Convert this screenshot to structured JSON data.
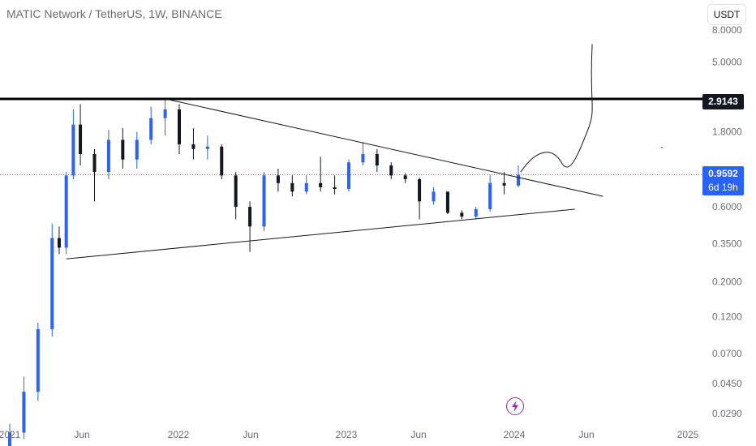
{
  "header": {
    "symbol_title": "MATIC Network / TetherUS, 1W, BINANCE",
    "currency_button": "USDT"
  },
  "badges": {
    "resistance_label": "2.9143",
    "last_price": "0.9592",
    "countdown": "6d 19h"
  },
  "icons": {
    "bottom_center": "lightning-bolt-icon",
    "bolt_color": "#9c27b0"
  },
  "colors": {
    "up": "#2962ff",
    "down": "#131722",
    "last_price_line": "#f23645",
    "background": "#ffffff"
  },
  "chart_data": {
    "type": "candlestick",
    "title": "MATIC Network / TetherUS, 1W, BINANCE",
    "y_scale": "log",
    "y_ticks": [
      "8.0000",
      "5.0000",
      "1.8000",
      "0.6000",
      "0.3500",
      "0.2000",
      "0.1200",
      "0.0700",
      "0.0450",
      "0.0290"
    ],
    "x_ticks": [
      "2021",
      "Jun",
      "2022",
      "Jun",
      "2023",
      "Jun",
      "2024",
      "Jun",
      "2025"
    ],
    "x_range": [
      "2021-01",
      "2025-01"
    ],
    "last_price": 0.9592,
    "horizontal_resistance": 2.9143,
    "candles": [
      {
        "date": "2021-01",
        "open": 0.018,
        "high": 0.025,
        "low": 0.017,
        "close": 0.022
      },
      {
        "date": "2021-02",
        "open": 0.022,
        "high": 0.05,
        "low": 0.02,
        "close": 0.04
      },
      {
        "date": "2021-03",
        "open": 0.04,
        "high": 0.11,
        "low": 0.035,
        "close": 0.1
      },
      {
        "date": "2021-04",
        "open": 0.1,
        "high": 0.47,
        "low": 0.09,
        "close": 0.38
      },
      {
        "date": "2021-04b",
        "open": 0.38,
        "high": 0.45,
        "low": 0.3,
        "close": 0.33
      },
      {
        "date": "2021-05a",
        "open": 0.33,
        "high": 1.0,
        "low": 0.3,
        "close": 0.95
      },
      {
        "date": "2021-05b",
        "open": 0.95,
        "high": 2.5,
        "low": 0.9,
        "close": 2.0
      },
      {
        "date": "2021-06",
        "open": 2.0,
        "high": 2.7,
        "low": 1.1,
        "close": 1.3
      },
      {
        "date": "2021-07",
        "open": 1.3,
        "high": 1.4,
        "low": 0.65,
        "close": 1.0
      },
      {
        "date": "2021-08",
        "open": 1.0,
        "high": 1.85,
        "low": 0.9,
        "close": 1.6
      },
      {
        "date": "2021-09",
        "open": 1.6,
        "high": 1.9,
        "low": 1.05,
        "close": 1.2
      },
      {
        "date": "2021-10",
        "open": 1.2,
        "high": 1.8,
        "low": 1.05,
        "close": 1.6
      },
      {
        "date": "2021-11",
        "open": 1.6,
        "high": 2.6,
        "low": 1.5,
        "close": 2.2
      },
      {
        "date": "2021-12",
        "open": 2.2,
        "high": 2.92,
        "low": 1.7,
        "close": 2.5
      },
      {
        "date": "2022-01",
        "open": 2.5,
        "high": 2.7,
        "low": 1.3,
        "close": 1.5
      },
      {
        "date": "2022-02",
        "open": 1.5,
        "high": 1.9,
        "low": 1.2,
        "close": 1.4
      },
      {
        "date": "2022-03",
        "open": 1.4,
        "high": 1.7,
        "low": 1.2,
        "close": 1.45
      },
      {
        "date": "2022-04",
        "open": 1.45,
        "high": 1.5,
        "low": 0.9,
        "close": 0.95
      },
      {
        "date": "2022-05",
        "open": 0.95,
        "high": 1.0,
        "low": 0.5,
        "close": 0.6
      },
      {
        "date": "2022-06",
        "open": 0.6,
        "high": 0.65,
        "low": 0.31,
        "close": 0.45
      },
      {
        "date": "2022-07",
        "open": 0.45,
        "high": 1.0,
        "low": 0.42,
        "close": 0.95
      },
      {
        "date": "2022-08",
        "open": 0.95,
        "high": 1.05,
        "low": 0.75,
        "close": 0.85
      },
      {
        "date": "2022-09",
        "open": 0.85,
        "high": 0.95,
        "low": 0.7,
        "close": 0.75
      },
      {
        "date": "2022-10",
        "open": 0.75,
        "high": 0.95,
        "low": 0.72,
        "close": 0.85
      },
      {
        "date": "2022-11",
        "open": 0.85,
        "high": 1.25,
        "low": 0.75,
        "close": 0.8
      },
      {
        "date": "2022-12",
        "open": 0.8,
        "high": 0.95,
        "low": 0.72,
        "close": 0.78
      },
      {
        "date": "2023-01",
        "open": 0.78,
        "high": 1.2,
        "low": 0.75,
        "close": 1.15
      },
      {
        "date": "2023-02",
        "open": 1.15,
        "high": 1.55,
        "low": 1.1,
        "close": 1.3
      },
      {
        "date": "2023-03",
        "open": 1.3,
        "high": 1.4,
        "low": 1.0,
        "close": 1.1
      },
      {
        "date": "2023-04",
        "open": 1.1,
        "high": 1.15,
        "low": 0.9,
        "close": 0.95
      },
      {
        "date": "2023-05",
        "open": 0.95,
        "high": 0.98,
        "low": 0.85,
        "close": 0.9
      },
      {
        "date": "2023-06",
        "open": 0.9,
        "high": 0.92,
        "low": 0.5,
        "close": 0.65
      },
      {
        "date": "2023-07",
        "open": 0.65,
        "high": 0.8,
        "low": 0.62,
        "close": 0.75
      },
      {
        "date": "2023-08",
        "open": 0.75,
        "high": 0.75,
        "low": 0.54,
        "close": 0.55
      },
      {
        "date": "2023-09",
        "open": 0.55,
        "high": 0.57,
        "low": 0.5,
        "close": 0.52
      },
      {
        "date": "2023-10",
        "open": 0.52,
        "high": 0.6,
        "low": 0.5,
        "close": 0.58
      },
      {
        "date": "2023-11",
        "open": 0.58,
        "high": 0.95,
        "low": 0.56,
        "close": 0.85
      },
      {
        "date": "2023-12",
        "open": 0.85,
        "high": 1.0,
        "low": 0.72,
        "close": 0.82
      },
      {
        "date": "2024-01",
        "open": 0.82,
        "high": 1.1,
        "low": 0.8,
        "close": 0.9592
      }
    ],
    "annotations": [
      {
        "kind": "trendline",
        "label": "",
        "from": [
          "2021-05",
          0.28
        ],
        "to": [
          "2024-05",
          0.58
        ]
      },
      {
        "kind": "trendline",
        "label": "",
        "from": [
          "2021-12",
          2.92
        ],
        "to": [
          "2024-07",
          0.7
        ]
      },
      {
        "kind": "projection-curve",
        "label": "",
        "from": [
          "2024-01",
          1.0
        ],
        "to": [
          "2024-06",
          6.5
        ]
      }
    ]
  }
}
